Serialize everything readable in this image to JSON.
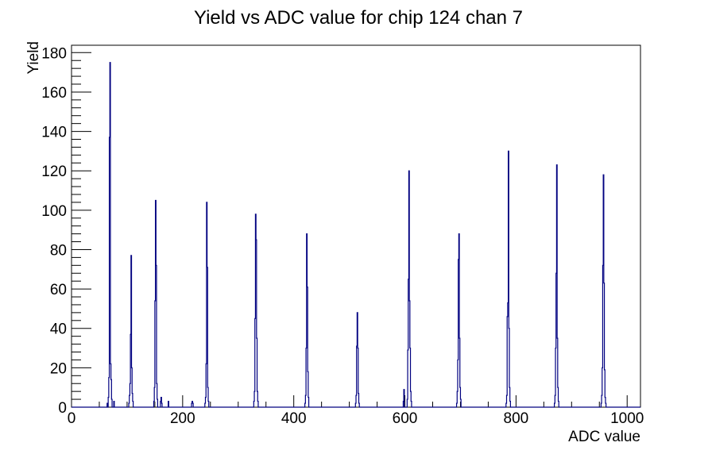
{
  "chart_data": {
    "type": "line",
    "subtype": "step-histogram",
    "title": "Yield vs ADC value for chip 124 chan 7",
    "xlabel": "ADC value",
    "ylabel": "Yield",
    "xlim": [
      0,
      1024
    ],
    "ylim": [
      0,
      183.75
    ],
    "x_major_ticks": [
      0,
      200,
      400,
      600,
      800,
      1000
    ],
    "x_minor_step": 50,
    "y_major_ticks": [
      0,
      20,
      40,
      60,
      80,
      100,
      120,
      140,
      160,
      180
    ],
    "y_minor_step": 4,
    "grid": false,
    "legend": false,
    "line_color": "#000080",
    "frame_color": "#000000",
    "background_color": "#ffffff",
    "peaks": [
      {
        "adc": 69,
        "yield": 175
      },
      {
        "adc": 107,
        "yield": 77
      },
      {
        "adc": 151,
        "yield": 105
      },
      {
        "adc": 243,
        "yield": 104
      },
      {
        "adc": 331,
        "yield": 98
      },
      {
        "adc": 423,
        "yield": 88
      },
      {
        "adc": 514,
        "yield": 48
      },
      {
        "adc": 607,
        "yield": 120
      },
      {
        "adc": 697,
        "yield": 88
      },
      {
        "adc": 786,
        "yield": 130
      },
      {
        "adc": 873,
        "yield": 123
      },
      {
        "adc": 957,
        "yield": 118
      }
    ],
    "bins": [
      [
        64,
        2
      ],
      [
        66,
        5
      ],
      [
        67,
        15
      ],
      [
        68,
        137
      ],
      [
        69,
        175
      ],
      [
        70,
        22
      ],
      [
        71,
        14
      ],
      [
        72,
        4
      ],
      [
        76,
        3
      ],
      [
        103,
        2
      ],
      [
        104,
        6
      ],
      [
        105,
        12
      ],
      [
        106,
        37
      ],
      [
        107,
        77
      ],
      [
        108,
        20
      ],
      [
        109,
        7
      ],
      [
        110,
        3
      ],
      [
        148,
        3
      ],
      [
        149,
        10
      ],
      [
        150,
        54
      ],
      [
        151,
        105
      ],
      [
        152,
        72
      ],
      [
        153,
        12
      ],
      [
        154,
        4
      ],
      [
        160,
        3
      ],
      [
        161,
        5
      ],
      [
        162,
        2
      ],
      [
        174,
        3
      ],
      [
        216,
        2
      ],
      [
        217,
        3
      ],
      [
        218,
        2
      ],
      [
        240,
        2
      ],
      [
        241,
        5
      ],
      [
        242,
        22
      ],
      [
        243,
        104
      ],
      [
        244,
        71
      ],
      [
        245,
        10
      ],
      [
        246,
        3
      ],
      [
        328,
        3
      ],
      [
        329,
        8
      ],
      [
        330,
        45
      ],
      [
        331,
        98
      ],
      [
        332,
        85
      ],
      [
        333,
        35
      ],
      [
        334,
        8
      ],
      [
        335,
        3
      ],
      [
        420,
        2
      ],
      [
        421,
        6
      ],
      [
        422,
        30
      ],
      [
        423,
        88
      ],
      [
        424,
        61
      ],
      [
        425,
        18
      ],
      [
        426,
        5
      ],
      [
        511,
        2
      ],
      [
        512,
        6
      ],
      [
        513,
        31
      ],
      [
        514,
        48
      ],
      [
        515,
        30
      ],
      [
        516,
        7
      ],
      [
        517,
        2
      ],
      [
        597,
        3
      ],
      [
        598,
        9
      ],
      [
        604,
        4
      ],
      [
        605,
        29
      ],
      [
        606,
        65
      ],
      [
        607,
        120
      ],
      [
        608,
        54
      ],
      [
        609,
        30
      ],
      [
        610,
        8
      ],
      [
        611,
        3
      ],
      [
        693,
        2
      ],
      [
        694,
        8
      ],
      [
        695,
        24
      ],
      [
        696,
        75
      ],
      [
        697,
        88
      ],
      [
        698,
        35
      ],
      [
        699,
        10
      ],
      [
        700,
        4
      ],
      [
        782,
        2
      ],
      [
        783,
        6
      ],
      [
        784,
        46
      ],
      [
        785,
        53
      ],
      [
        786,
        130
      ],
      [
        787,
        40
      ],
      [
        788,
        10
      ],
      [
        789,
        3
      ],
      [
        869,
        2
      ],
      [
        870,
        6
      ],
      [
        871,
        30
      ],
      [
        872,
        68
      ],
      [
        873,
        123
      ],
      [
        874,
        35
      ],
      [
        875,
        10
      ],
      [
        876,
        3
      ],
      [
        953,
        2
      ],
      [
        954,
        6
      ],
      [
        955,
        20
      ],
      [
        956,
        72
      ],
      [
        957,
        118
      ],
      [
        958,
        63
      ],
      [
        959,
        19
      ],
      [
        960,
        5
      ],
      [
        961,
        2
      ]
    ]
  }
}
